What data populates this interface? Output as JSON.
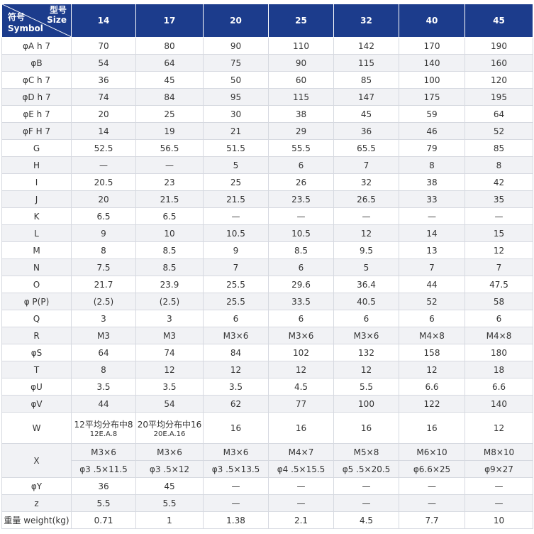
{
  "header": {
    "symbol_cn": "符号",
    "symbol_en": "Symbol",
    "size_cn": "型号",
    "size_en": "Size",
    "sizes": [
      "14",
      "17",
      "20",
      "25",
      "32",
      "40",
      "45"
    ]
  },
  "rows": [
    {
      "label": "φA h 7",
      "cells": [
        "70",
        "80",
        "90",
        "110",
        "142",
        "170",
        "190"
      ]
    },
    {
      "label": "φB",
      "cells": [
        "54",
        "64",
        "75",
        "90",
        "115",
        "140",
        "160"
      ]
    },
    {
      "label": "φC h 7",
      "cells": [
        "36",
        "45",
        "50",
        "60",
        "85",
        "100",
        "120"
      ]
    },
    {
      "label": "φD h 7",
      "cells": [
        "74",
        "84",
        "95",
        "115",
        "147",
        "175",
        "195"
      ]
    },
    {
      "label": "φE h 7",
      "cells": [
        "20",
        "25",
        "30",
        "38",
        "45",
        "59",
        "64"
      ]
    },
    {
      "label": "φF H 7",
      "cells": [
        "14",
        "19",
        "21",
        "29",
        "36",
        "46",
        "52"
      ]
    },
    {
      "label": "G",
      "cells": [
        "52.5",
        "56.5",
        "51.5",
        "55.5",
        "65.5",
        "79",
        "85"
      ]
    },
    {
      "label": "H",
      "cells": [
        "—",
        "—",
        "5",
        "6",
        "7",
        "8",
        "8"
      ]
    },
    {
      "label": "I",
      "cells": [
        "20.5",
        "23",
        "25",
        "26",
        "32",
        "38",
        "42"
      ]
    },
    {
      "label": "J",
      "cells": [
        "20",
        "21.5",
        "21.5",
        "23.5",
        "26.5",
        "33",
        "35"
      ]
    },
    {
      "label": "K",
      "cells": [
        "6.5",
        "6.5",
        "—",
        "—",
        "—",
        "—",
        "—"
      ]
    },
    {
      "label": "L",
      "cells": [
        "9",
        "10",
        "10.5",
        "10.5",
        "12",
        "14",
        "15"
      ]
    },
    {
      "label": "M",
      "cells": [
        "8",
        "8.5",
        "9",
        "8.5",
        "9.5",
        "13",
        "12"
      ]
    },
    {
      "label": "N",
      "cells": [
        "7.5",
        "8.5",
        "7",
        "6",
        "5",
        "7",
        "7"
      ]
    },
    {
      "label": "O",
      "cells": [
        "21.7",
        "23.9",
        "25.5",
        "29.6",
        "36.4",
        "44",
        "47.5"
      ]
    },
    {
      "label": "φ P(P)",
      "cells": [
        "(2.5)",
        "(2.5)",
        "25.5",
        "33.5",
        "40.5",
        "52",
        "58"
      ]
    },
    {
      "label": "Q",
      "cells": [
        "3",
        "3",
        "6",
        "6",
        "6",
        "6",
        "6"
      ]
    },
    {
      "label": "R",
      "cells": [
        "M3",
        "M3",
        "M3×6",
        "M3×6",
        "M3×6",
        "M4×8",
        "M4×8"
      ]
    },
    {
      "label": "φS",
      "cells": [
        "64",
        "74",
        "84",
        "102",
        "132",
        "158",
        "180"
      ]
    },
    {
      "label": "T",
      "cells": [
        "8",
        "12",
        "12",
        "12",
        "12",
        "12",
        "18"
      ]
    },
    {
      "label": "φU",
      "cells": [
        "3.5",
        "3.5",
        "3.5",
        "4.5",
        "5.5",
        "6.6",
        "6.6"
      ]
    },
    {
      "label": "φV",
      "cells": [
        "44",
        "54",
        "62",
        "77",
        "100",
        "122",
        "140"
      ]
    },
    {
      "label": "W",
      "cells": [
        [
          "12平均分布中8",
          "12E.A.8"
        ],
        [
          "20平均分布中16",
          "20E.A.16"
        ],
        "16",
        "16",
        "16",
        "16",
        "12"
      ]
    },
    {
      "label": "X",
      "lines": [
        [
          "M3×6",
          "M3×6",
          "M3×6",
          "M4×7",
          "M5×8",
          "M6×10",
          "M8×10"
        ],
        [
          "φ3 .5×11.5",
          "φ3 .5×12",
          "φ3 .5×13.5",
          "φ4 .5×15.5",
          "φ5 .5×20.5",
          "φ6.6×25",
          "φ9×27"
        ]
      ]
    },
    {
      "label": "φY",
      "cells": [
        "36",
        "45",
        "—",
        "—",
        "—",
        "—",
        "—"
      ]
    },
    {
      "label": "z",
      "cells": [
        "5.5",
        "5.5",
        "—",
        "—",
        "—",
        "—",
        "—"
      ]
    },
    {
      "label": "重量 weight(kg)",
      "cells": [
        "0.71",
        "1",
        "1.38",
        "2.1",
        "4.5",
        "7.7",
        "10"
      ]
    }
  ]
}
